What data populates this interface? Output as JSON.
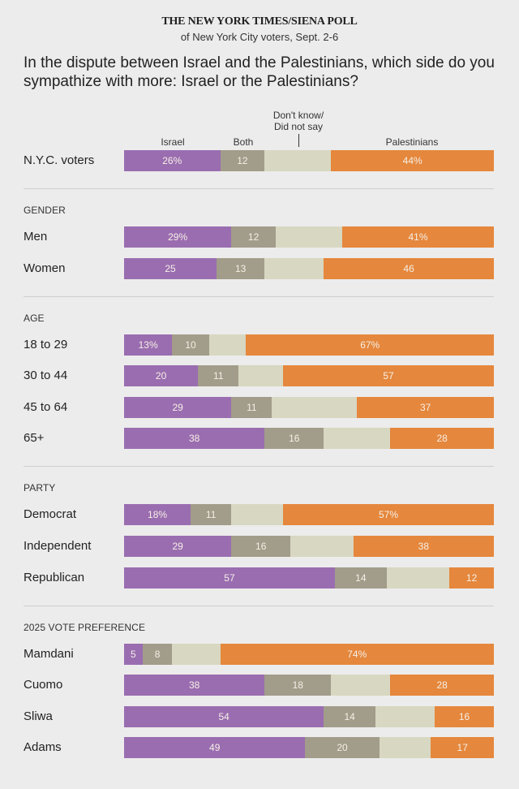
{
  "header": {
    "title": "THE NEW YORK TIMES/SIENA POLL",
    "subtitle": "of New York City voters, Sept. 2-6"
  },
  "question": "In the dispute between Israel and the Palestinians, which side do you sympathize with more: Israel or the Palestinians?",
  "colors": {
    "israel": "#9a6db0",
    "both": "#a29c8a",
    "dont_know": "#d8d7c1",
    "palestinians": "#e5873c",
    "background": "#ececec"
  },
  "chart_data": {
    "type": "bar",
    "orientation": "horizontal",
    "stacked": true,
    "title": "In the dispute between Israel and the Palestinians, which side do you sympathize with more: Israel or the Palestinians?",
    "xlim": [
      0,
      100
    ],
    "unit": "%",
    "legend": [
      "Israel",
      "Both",
      "Don't know/\nDid not say",
      "Palestinians"
    ],
    "legend_placement": "top",
    "categories": [
      "N.Y.C. voters",
      "Men",
      "Women",
      "18 to 29",
      "30 to 44",
      "45 to 64",
      "65+",
      "Democrat",
      "Independent",
      "Republican",
      "Mamdani",
      "Cuomo",
      "Sliwa",
      "Adams"
    ],
    "series": [
      {
        "name": "Israel",
        "values": [
          26,
          29,
          25,
          13,
          20,
          29,
          38,
          18,
          29,
          57,
          5,
          38,
          54,
          49
        ]
      },
      {
        "name": "Both",
        "values": [
          12,
          12,
          13,
          10,
          11,
          11,
          16,
          11,
          16,
          14,
          8,
          18,
          14,
          20
        ]
      },
      {
        "name": "Don't know/Did not say",
        "values": [
          18,
          18,
          16,
          10,
          12,
          23,
          18,
          14,
          17,
          17,
          13,
          16,
          16,
          14
        ],
        "labeled": false
      },
      {
        "name": "Palestinians",
        "values": [
          44,
          41,
          46,
          67,
          57,
          37,
          28,
          57,
          38,
          12,
          74,
          28,
          16,
          17
        ]
      }
    ],
    "groups": [
      {
        "title": "",
        "rows": [
          {
            "label": "N.Y.C. voters",
            "israel": 26,
            "both": 12,
            "dk": 18,
            "pal": 44,
            "israel_label": "26%",
            "both_label": "12",
            "pal_label": "44%"
          }
        ]
      },
      {
        "title": "GENDER",
        "rows": [
          {
            "label": "Men",
            "israel": 29,
            "both": 12,
            "dk": 18,
            "pal": 41,
            "israel_label": "29%",
            "both_label": "12",
            "pal_label": "41%"
          },
          {
            "label": "Women",
            "israel": 25,
            "both": 13,
            "dk": 16,
            "pal": 46,
            "israel_label": "25",
            "both_label": "13",
            "pal_label": "46"
          }
        ]
      },
      {
        "title": "AGE",
        "rows": [
          {
            "label": "18 to 29",
            "israel": 13,
            "both": 10,
            "dk": 10,
            "pal": 67,
            "israel_label": "13%",
            "both_label": "10",
            "pal_label": "67%"
          },
          {
            "label": "30 to 44",
            "israel": 20,
            "both": 11,
            "dk": 12,
            "pal": 57,
            "israel_label": "20",
            "both_label": "11",
            "pal_label": "57"
          },
          {
            "label": "45 to 64",
            "israel": 29,
            "both": 11,
            "dk": 23,
            "pal": 37,
            "israel_label": "29",
            "both_label": "11",
            "pal_label": "37"
          },
          {
            "label": "65+",
            "israel": 38,
            "both": 16,
            "dk": 18,
            "pal": 28,
            "israel_label": "38",
            "both_label": "16",
            "pal_label": "28"
          }
        ]
      },
      {
        "title": "PARTY",
        "rows": [
          {
            "label": "Democrat",
            "israel": 18,
            "both": 11,
            "dk": 14,
            "pal": 57,
            "israel_label": "18%",
            "both_label": "11",
            "pal_label": "57%"
          },
          {
            "label": "Independent",
            "israel": 29,
            "both": 16,
            "dk": 17,
            "pal": 38,
            "israel_label": "29",
            "both_label": "16",
            "pal_label": "38"
          },
          {
            "label": "Republican",
            "israel": 57,
            "both": 14,
            "dk": 17,
            "pal": 12,
            "israel_label": "57",
            "both_label": "14",
            "pal_label": "12"
          }
        ]
      },
      {
        "title": "2025 VOTE PREFERENCE",
        "rows": [
          {
            "label": "Mamdani",
            "israel": 5,
            "both": 8,
            "dk": 13,
            "pal": 74,
            "israel_label": "5",
            "both_label": "8",
            "pal_label": "74%"
          },
          {
            "label": "Cuomo",
            "israel": 38,
            "both": 18,
            "dk": 16,
            "pal": 28,
            "israel_label": "38",
            "both_label": "18",
            "pal_label": "28"
          },
          {
            "label": "Sliwa",
            "israel": 54,
            "both": 14,
            "dk": 16,
            "pal": 16,
            "israel_label": "54",
            "both_label": "14",
            "pal_label": "16"
          },
          {
            "label": "Adams",
            "israel": 49,
            "both": 20,
            "dk": 14,
            "pal": 17,
            "israel_label": "49",
            "both_label": "20",
            "pal_label": "17"
          }
        ]
      }
    ]
  },
  "column_headers": {
    "israel": "Israel",
    "both": "Both",
    "dk_line1": "Don't know/",
    "dk_line2": "Did not say",
    "palestinians": "Palestinians"
  }
}
